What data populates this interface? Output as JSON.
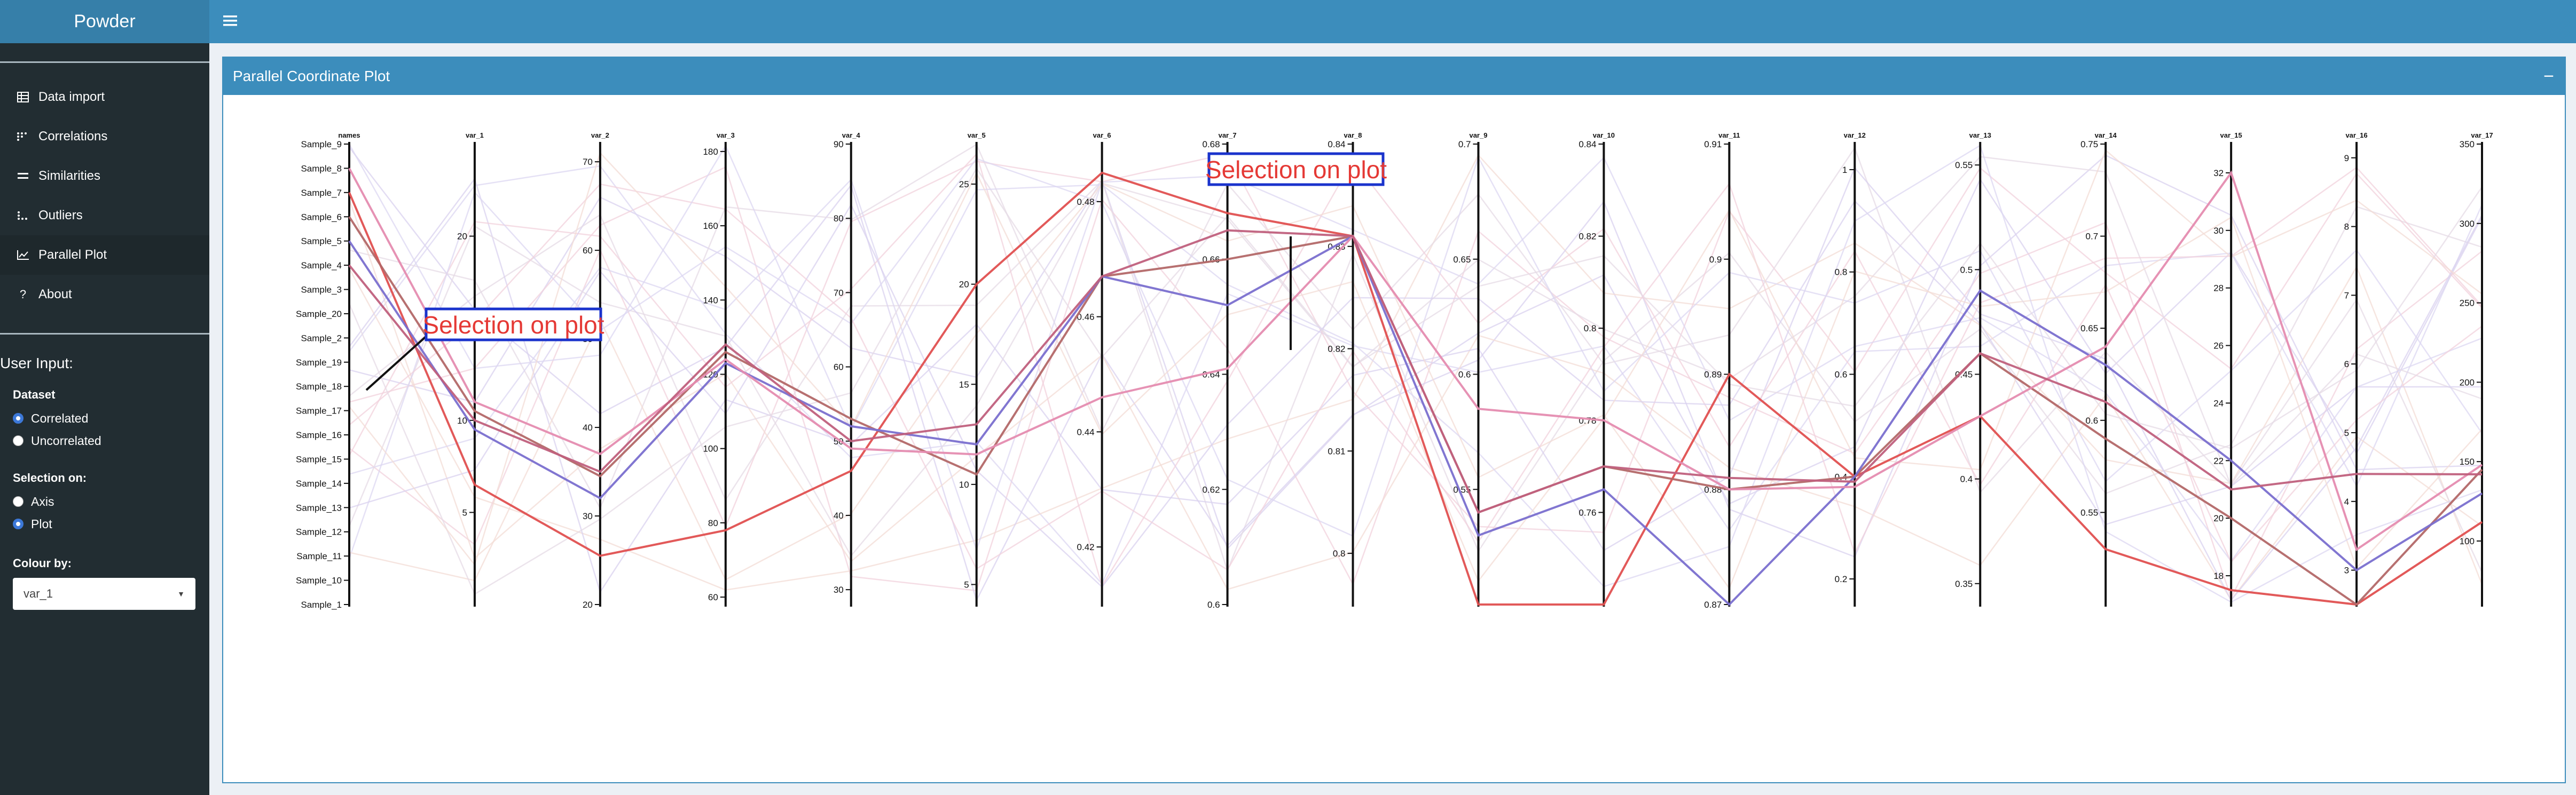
{
  "app": {
    "title": "Powder"
  },
  "sidebar": {
    "items": [
      {
        "label": "Data import",
        "icon": "table-icon",
        "active": false
      },
      {
        "label": "Correlations",
        "icon": "correlation-icon",
        "active": false
      },
      {
        "label": "Similarities",
        "icon": "equals-icon",
        "active": false
      },
      {
        "label": "Outliers",
        "icon": "outliers-icon",
        "active": false
      },
      {
        "label": "Parallel Plot",
        "icon": "line-chart-icon",
        "active": true
      },
      {
        "label": "About",
        "icon": "question-icon",
        "active": false
      }
    ],
    "user_input_title": "User Input:",
    "dataset": {
      "label": "Dataset",
      "options": [
        {
          "label": "Correlated",
          "checked": true
        },
        {
          "label": "Uncorrelated",
          "checked": false
        }
      ]
    },
    "selection_on": {
      "label": "Selection on:",
      "options": [
        {
          "label": "Axis",
          "checked": false
        },
        {
          "label": "Plot",
          "checked": true
        }
      ]
    },
    "colour_by": {
      "label": "Colour by:",
      "value": "var_1"
    }
  },
  "panel": {
    "title": "Parallel Coordinate Plot",
    "collapse_label": "−"
  },
  "annotations": [
    {
      "label": "Selection on plot"
    },
    {
      "label": "Selection on plot"
    }
  ],
  "chart_data": {
    "type": "parallel-coordinates",
    "axes": [
      {
        "name": "names",
        "categorical": true,
        "ticks": [
          "Sample_9",
          "Sample_8",
          "Sample_7",
          "Sample_6",
          "Sample_5",
          "Sample_4",
          "Sample_3",
          "Sample_20",
          "Sample_2",
          "Sample_19",
          "Sample_18",
          "Sample_17",
          "Sample_16",
          "Sample_15",
          "Sample_14",
          "Sample_13",
          "Sample_12",
          "Sample_11",
          "Sample_10",
          "Sample_1"
        ]
      },
      {
        "name": "var_1",
        "min": 0,
        "max": 25,
        "ticks": [
          5,
          10,
          20
        ]
      },
      {
        "name": "var_2",
        "min": 20,
        "max": 72,
        "ticks": [
          20,
          30,
          40,
          50,
          60,
          70
        ]
      },
      {
        "name": "var_3",
        "min": 58,
        "max": 182,
        "ticks": [
          60,
          80,
          100,
          120,
          140,
          160,
          180
        ]
      },
      {
        "name": "var_4",
        "min": 28,
        "max": 90,
        "ticks": [
          30,
          40,
          50,
          60,
          70,
          80,
          90
        ]
      },
      {
        "name": "var_5",
        "min": 4,
        "max": 27,
        "ticks": [
          5,
          10,
          15,
          20,
          25
        ]
      },
      {
        "name": "var_6",
        "min": 0.41,
        "max": 0.49,
        "ticks": [
          0.42,
          0.44,
          0.46,
          0.48
        ]
      },
      {
        "name": "var_7",
        "min": 0.6,
        "max": 0.68,
        "ticks": [
          0.6,
          0.62,
          0.64,
          0.66,
          0.68
        ]
      },
      {
        "name": "var_8",
        "min": 0.795,
        "max": 0.84,
        "ticks": [
          0.8,
          0.81,
          0.82,
          0.83,
          0.84
        ]
      },
      {
        "name": "var_9",
        "min": 0.5,
        "max": 0.7,
        "ticks": [
          0.55,
          0.6,
          0.65,
          0.7
        ]
      },
      {
        "name": "var_10",
        "min": 0.74,
        "max": 0.84,
        "ticks": [
          0.76,
          0.78,
          0.8,
          0.82,
          0.84
        ]
      },
      {
        "name": "var_11",
        "min": 0.87,
        "max": 0.91,
        "ticks": [
          0.87,
          0.88,
          0.89,
          0.9,
          0.91
        ]
      },
      {
        "name": "var_12",
        "min": 0.15,
        "max": 1.05,
        "ticks": [
          0.2,
          0.4,
          0.6,
          0.8,
          1.0
        ]
      },
      {
        "name": "var_13",
        "min": 0.34,
        "max": 0.56,
        "ticks": [
          0.35,
          0.4,
          0.45,
          0.5,
          0.55
        ]
      },
      {
        "name": "var_14",
        "min": 0.5,
        "max": 0.75,
        "ticks": [
          0.55,
          0.6,
          0.65,
          0.7,
          0.75
        ]
      },
      {
        "name": "var_15",
        "min": 17,
        "max": 33,
        "ticks": [
          18,
          20,
          22,
          24,
          26,
          28,
          30,
          32
        ]
      },
      {
        "name": "var_16",
        "min": 2.5,
        "max": 9.2,
        "ticks": [
          3,
          4,
          5,
          6,
          7,
          8,
          9
        ]
      },
      {
        "name": "var_17",
        "min": 60,
        "max": 350,
        "ticks": [
          100,
          150,
          200,
          250,
          300,
          350
        ]
      }
    ],
    "highlighted": [
      {
        "color": "#e05050",
        "values": [
          "Sample_7",
          6.5,
          25.5,
          78,
          46,
          20,
          0.485,
          0.668,
          0.831,
          0.5,
          0.74,
          0.89,
          0.4,
          0.43,
          0.53,
          17.5,
          2.5,
          112
        ]
      },
      {
        "color": "#b36868",
        "values": [
          "Sample_6",
          10.5,
          34.5,
          126,
          53,
          10.5,
          0.467,
          0.66,
          0.831,
          0.54,
          0.77,
          0.88,
          0.4,
          0.46,
          0.59,
          20,
          2.5,
          145
        ]
      },
      {
        "color": "#7a6fcf",
        "values": [
          "Sample_5",
          9.5,
          32,
          123,
          52,
          12,
          0.467,
          0.652,
          0.831,
          0.53,
          0.765,
          0.87,
          0.4,
          0.49,
          0.63,
          22,
          3,
          130
        ]
      },
      {
        "color": "#e58cb0",
        "values": [
          "Sample_8",
          11,
          37,
          124,
          49,
          11.5,
          0.446,
          0.641,
          0.831,
          0.585,
          0.78,
          0.88,
          0.38,
          0.43,
          0.64,
          32,
          3.3,
          148
        ]
      },
      {
        "color": "#c0607d",
        "values": [
          "Sample_4",
          10,
          35,
          128,
          50,
          13,
          0.467,
          0.665,
          0.831,
          0.54,
          0.77,
          0.881,
          0.39,
          0.46,
          0.61,
          21,
          4.4,
          142
        ]
      }
    ]
  }
}
